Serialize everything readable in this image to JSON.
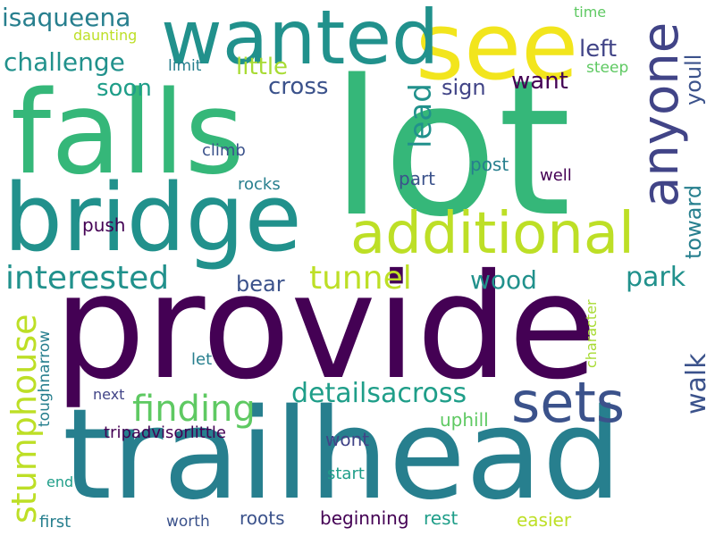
{
  "palette": {
    "deep_purple": "#440154",
    "dark_teal": "#277f8e",
    "teal": "#21918c",
    "slate_blue": "#3b528b",
    "indigo": "#414487",
    "green": "#35b779",
    "sea_green": "#2fb47c",
    "lime": "#a8db34",
    "yellow_green": "#bddf26",
    "yellow": "#f2e51d",
    "soft_green": "#5ec962",
    "cyan_teal": "#1f9e89"
  },
  "words": {
    "lot": "lot",
    "provide": "provide",
    "trailhead": "trailhead",
    "falls": "falls",
    "bridge": "bridge",
    "see": "see",
    "wanted": "wanted",
    "additional": "additional",
    "anyone": "anyone",
    "sets": "sets",
    "finding": "finding",
    "interested": "interested",
    "stumphouse": "stumphouse",
    "tunnel": "tunnel",
    "isaqueena": "isaqueena",
    "challenge": "challenge",
    "detailsacross": "detailsacross",
    "lead": "lead",
    "park": "park",
    "wood": "wood",
    "walk": "walk",
    "little": "little",
    "cross": "cross",
    "left": "left",
    "want": "want",
    "youll": "youll",
    "soon": "soon",
    "sign": "sign",
    "toward": "toward",
    "bear": "bear",
    "push": "push",
    "post": "post",
    "part": "part",
    "rocks": "rocks",
    "climb": "climb",
    "well": "well",
    "wont": "wont",
    "uphill": "uphill",
    "roots": "roots",
    "beginning": "beginning",
    "rest": "rest",
    "easier": "easier",
    "tripadvisorlittle": "tripadvisorlittle",
    "toughnarrow": "toughnarrow",
    "character": "character",
    "next": "next",
    "let": "let",
    "start": "start",
    "end": "end",
    "first": "first",
    "worth": "worth",
    "daunting": "daunting",
    "time": "time",
    "limit": "limit",
    "steep": "steep"
  }
}
